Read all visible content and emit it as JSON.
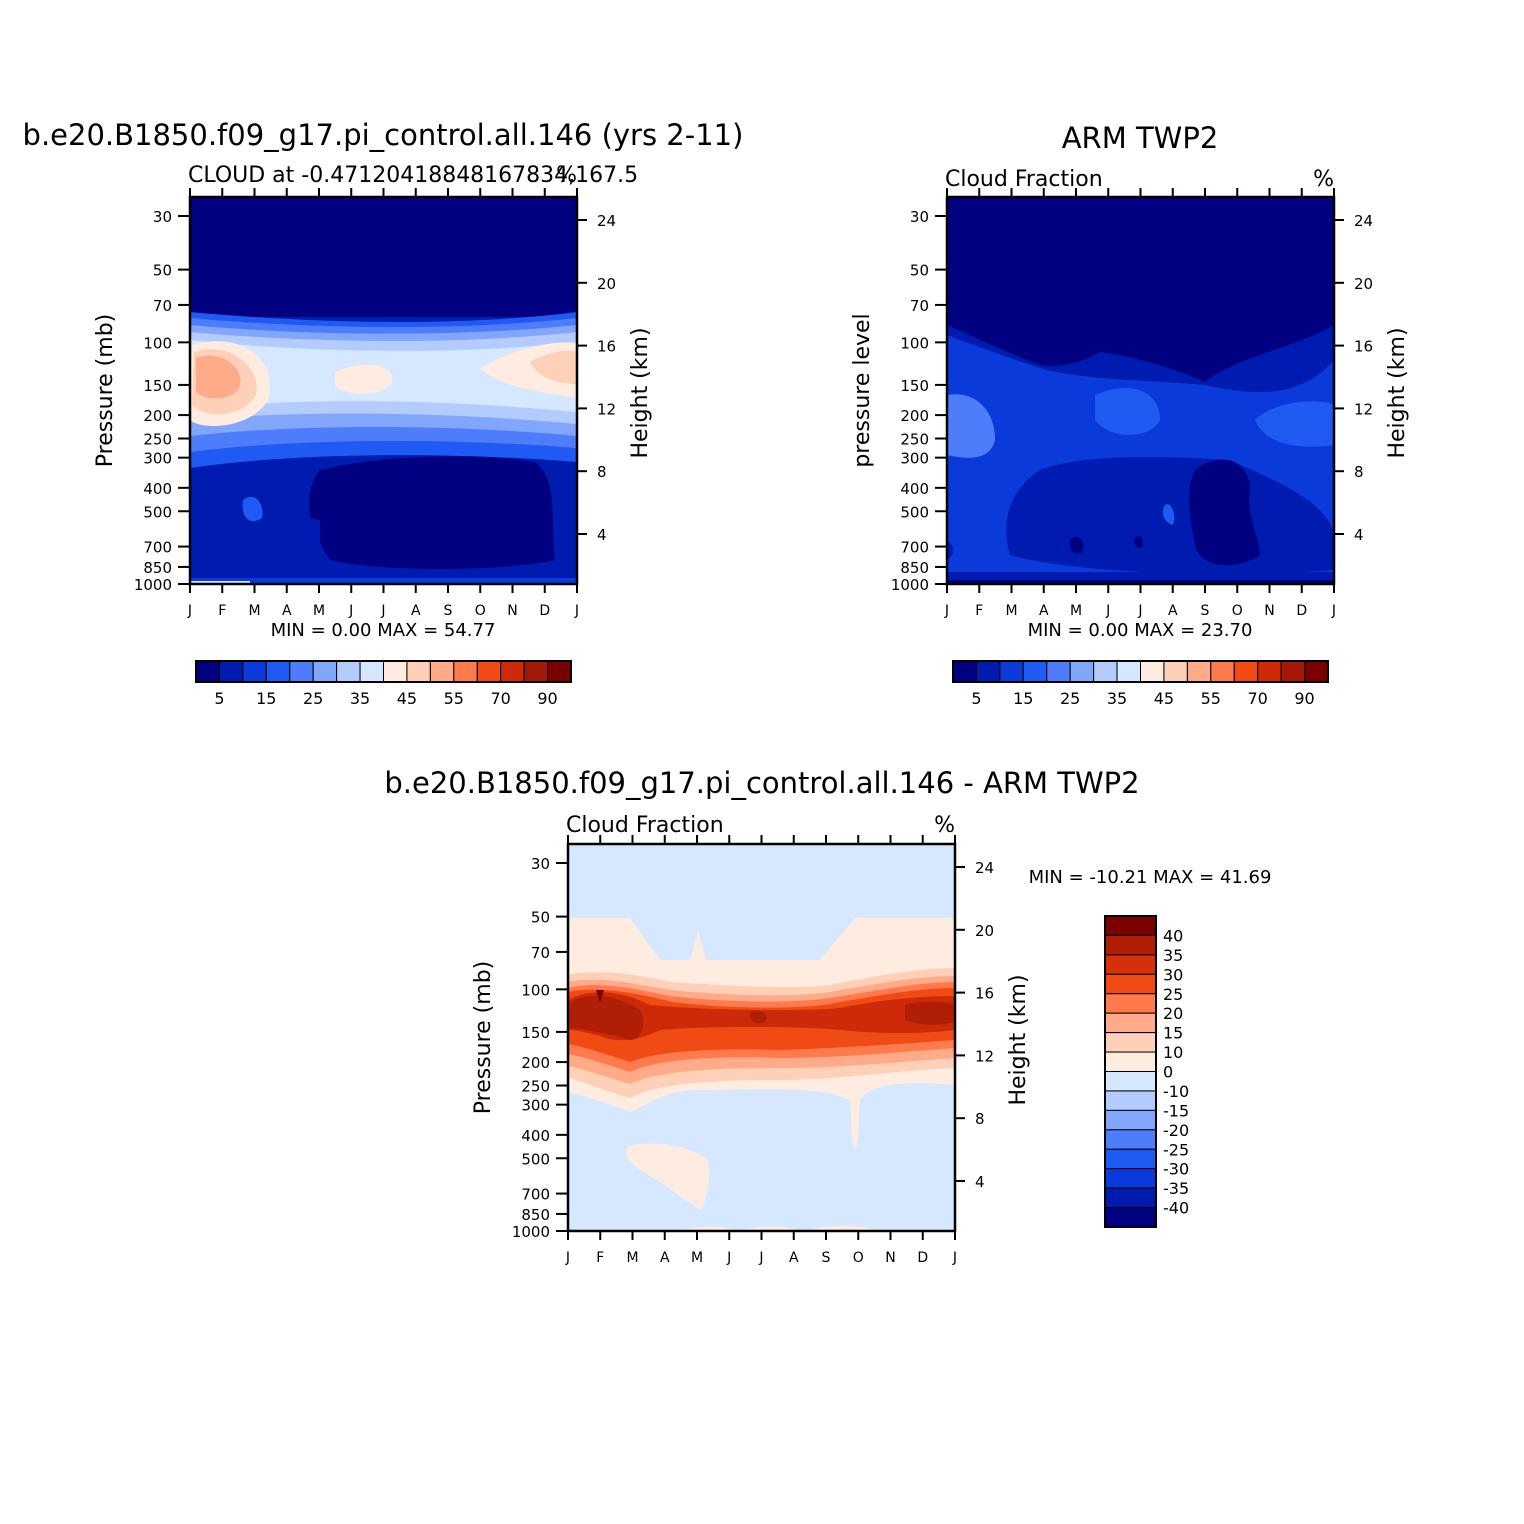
{
  "chart_data": [
    {
      "type": "heatmap",
      "title": "b.e20.B1850.f09_g17.pi_control.all.146 (yrs 2-11)",
      "subtitle_left": "CLOUD at -0.47120418848167834,167.5",
      "subtitle_right": "%",
      "ylabel": "Pressure (mb)",
      "ylabel_right": "Height (km)",
      "x": [
        "J",
        "F",
        "M",
        "A",
        "M",
        "J",
        "J",
        "A",
        "S",
        "O",
        "N",
        "D",
        "J"
      ],
      "y_pressure_ticks": [
        "30",
        "50",
        "70",
        "100",
        "150",
        "200",
        "250",
        "300",
        "400",
        "500",
        "700",
        "850",
        "1000"
      ],
      "y_height_ticks": [
        "24",
        "20",
        "16",
        "12",
        "8",
        "4"
      ],
      "stats": {
        "min_label": "MIN =",
        "min": "0.00",
        "max_label": "MAX =",
        "max": "54.77"
      },
      "colorbar": {
        "orientation": "horizontal",
        "labels": [
          "5",
          "15",
          "25",
          "35",
          "45",
          "55",
          "70",
          "90"
        ],
        "colors": [
          "#000080",
          "#001cb0",
          "#0a3ad9",
          "#1f5af2",
          "#4d7dfa",
          "#82a6fb",
          "#b3ccfd",
          "#d6e8ff",
          "#ffece0",
          "#ffd0b8",
          "#ffaa88",
          "#ff7a4d",
          "#f04a15",
          "#cc2a08",
          "#a41808",
          "#7a0000"
        ]
      }
    },
    {
      "type": "heatmap",
      "title": "ARM TWP2",
      "subtitle_left": "Cloud Fraction",
      "subtitle_right": "%",
      "ylabel": "pressure level",
      "ylabel_right": "Height (km)",
      "x": [
        "J",
        "F",
        "M",
        "A",
        "M",
        "J",
        "J",
        "A",
        "S",
        "O",
        "N",
        "D",
        "J"
      ],
      "y_pressure_ticks": [
        "30",
        "50",
        "70",
        "100",
        "150",
        "200",
        "250",
        "300",
        "400",
        "500",
        "700",
        "850",
        "1000"
      ],
      "y_height_ticks": [
        "24",
        "20",
        "16",
        "12",
        "8",
        "4"
      ],
      "stats": {
        "min_label": "MIN =",
        "min": "0.00",
        "max_label": "MAX =",
        "max": "23.70"
      },
      "colorbar": {
        "orientation": "horizontal",
        "labels": [
          "5",
          "15",
          "25",
          "35",
          "45",
          "55",
          "70",
          "90"
        ],
        "colors": [
          "#000080",
          "#001cb0",
          "#0a3ad9",
          "#1f5af2",
          "#4d7dfa",
          "#82a6fb",
          "#b3ccfd",
          "#d6e8ff",
          "#ffece0",
          "#ffd0b8",
          "#ffaa88",
          "#ff7a4d",
          "#f04a15",
          "#cc2a08",
          "#a41808",
          "#7a0000"
        ]
      }
    },
    {
      "type": "heatmap",
      "title": "b.e20.B1850.f09_g17.pi_control.all.146 - ARM TWP2",
      "subtitle_left": "Cloud Fraction",
      "subtitle_right": "%",
      "ylabel": "Pressure (mb)",
      "ylabel_right": "Height (km)",
      "x": [
        "J",
        "F",
        "M",
        "A",
        "M",
        "J",
        "J",
        "A",
        "S",
        "O",
        "N",
        "D",
        "J"
      ],
      "y_pressure_ticks": [
        "30",
        "50",
        "70",
        "100",
        "150",
        "200",
        "250",
        "300",
        "400",
        "500",
        "700",
        "850",
        "1000"
      ],
      "y_height_ticks": [
        "24",
        "20",
        "16",
        "12",
        "8",
        "4"
      ],
      "stats": {
        "min_label": "MIN =",
        "min": "-10.21",
        "max_label": "MAX =",
        "max": "41.69"
      },
      "colorbar": {
        "orientation": "vertical",
        "labels": [
          "40",
          "35",
          "30",
          "25",
          "20",
          "15",
          "10",
          "0",
          "-10",
          "-15",
          "-20",
          "-25",
          "-30",
          "-35",
          "-40"
        ],
        "colors": [
          "#7a0000",
          "#b01f05",
          "#d63008",
          "#f04a15",
          "#ff7a4d",
          "#ffaa88",
          "#ffd0b8",
          "#ffece0",
          "#d6e8ff",
          "#b3ccfd",
          "#82a6fb",
          "#4d7dfa",
          "#1f5af2",
          "#0a3ad9",
          "#001cb0",
          "#000080"
        ]
      }
    }
  ]
}
